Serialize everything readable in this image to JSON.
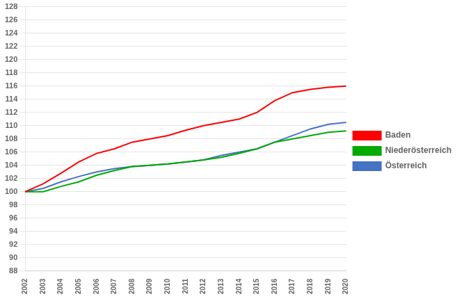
{
  "chart_data": {
    "type": "line",
    "categories": [
      "2002",
      "2003",
      "2004",
      "2005",
      "2006",
      "2007",
      "2008",
      "2009",
      "2010",
      "2011",
      "2012",
      "2013",
      "2014",
      "2015",
      "2016",
      "2017",
      "2018",
      "2019",
      "2020"
    ],
    "series": [
      {
        "name": "Baden",
        "color": "#ff0000",
        "values": [
          100.0,
          101.2,
          102.8,
          104.5,
          105.8,
          106.5,
          107.5,
          108.0,
          108.5,
          109.3,
          110.0,
          110.5,
          111.0,
          112.0,
          113.8,
          115.0,
          115.5,
          115.8,
          116.0
        ]
      },
      {
        "name": "Niederösterreich",
        "color": "#00aa00",
        "values": [
          100.0,
          100.0,
          100.8,
          101.5,
          102.5,
          103.2,
          103.8,
          104.0,
          104.2,
          104.5,
          104.8,
          105.2,
          105.8,
          106.5,
          107.5,
          108.0,
          108.5,
          109.0,
          109.2
        ]
      },
      {
        "name": "Österreich",
        "color": "#4472c4",
        "values": [
          100.0,
          100.5,
          101.5,
          102.3,
          103.0,
          103.5,
          103.8,
          104.0,
          104.2,
          104.5,
          104.8,
          105.5,
          106.0,
          106.5,
          107.5,
          108.5,
          109.5,
          110.2,
          110.5
        ]
      }
    ],
    "ylim": [
      88,
      128
    ],
    "yticks": [
      88,
      90,
      92,
      94,
      96,
      98,
      100,
      102,
      104,
      106,
      108,
      110,
      112,
      114,
      116,
      118,
      120,
      122,
      124,
      126,
      128
    ],
    "grid": true,
    "legend": "right"
  }
}
